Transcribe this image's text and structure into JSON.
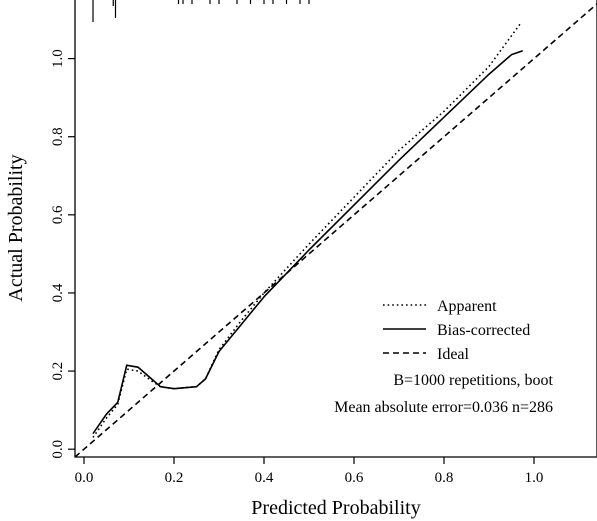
{
  "chart_data": {
    "type": "line",
    "title": "",
    "xlabel": "Predicted Probability",
    "ylabel": "Actual Probability",
    "xlim": [
      -0.02,
      1.14
    ],
    "ylim": [
      -0.02,
      1.15
    ],
    "xticks": [
      {
        "value": 0.0,
        "label": "0.0"
      },
      {
        "value": 0.2,
        "label": "0.2"
      },
      {
        "value": 0.4,
        "label": "0.4"
      },
      {
        "value": 0.6,
        "label": "0.6"
      },
      {
        "value": 0.8,
        "label": "0.8"
      },
      {
        "value": 1.0,
        "label": "1.0"
      }
    ],
    "yticks": [
      {
        "value": 0.0,
        "label": "0.0"
      },
      {
        "value": 0.2,
        "label": "0.2"
      },
      {
        "value": 0.4,
        "label": "0.4"
      },
      {
        "value": 0.6,
        "label": "0.6"
      },
      {
        "value": 0.8,
        "label": "0.8"
      },
      {
        "value": 1.0,
        "label": "1.0"
      }
    ],
    "grid": false,
    "legend_position": "bottom-right",
    "series": [
      {
        "name": "Apparent",
        "dash": "dotted",
        "x": [
          0.02,
          0.05,
          0.075,
          0.095,
          0.12,
          0.15,
          0.17,
          0.2,
          0.25,
          0.27,
          0.3,
          0.35,
          0.4,
          0.5,
          0.6,
          0.7,
          0.8,
          0.9,
          0.97
        ],
        "y": [
          0.03,
          0.08,
          0.115,
          0.205,
          0.2,
          0.175,
          0.16,
          0.155,
          0.16,
          0.18,
          0.255,
          0.33,
          0.4,
          0.525,
          0.645,
          0.765,
          0.865,
          0.98,
          1.09
        ]
      },
      {
        "name": "Bias-corrected",
        "dash": "solid",
        "x": [
          0.02,
          0.05,
          0.075,
          0.095,
          0.12,
          0.15,
          0.17,
          0.2,
          0.25,
          0.27,
          0.3,
          0.35,
          0.4,
          0.5,
          0.6,
          0.7,
          0.8,
          0.9,
          0.95,
          0.975
        ],
        "y": [
          0.04,
          0.09,
          0.12,
          0.215,
          0.21,
          0.18,
          0.16,
          0.155,
          0.16,
          0.18,
          0.25,
          0.32,
          0.39,
          0.51,
          0.625,
          0.74,
          0.85,
          0.96,
          1.01,
          1.02
        ]
      },
      {
        "name": "Ideal",
        "dash": "dashed",
        "x": [
          -0.02,
          1.14
        ],
        "y": [
          -0.02,
          1.14
        ]
      }
    ],
    "rug": [
      0.02,
      0.065,
      0.07,
      0.21,
      0.22,
      0.24,
      0.28,
      0.3,
      0.34,
      0.37,
      0.4,
      0.42,
      0.45,
      0.48,
      0.5
    ],
    "annotations": [
      "B=1000 repetitions, boot",
      "Mean absolute error=0.036 n=286"
    ]
  }
}
